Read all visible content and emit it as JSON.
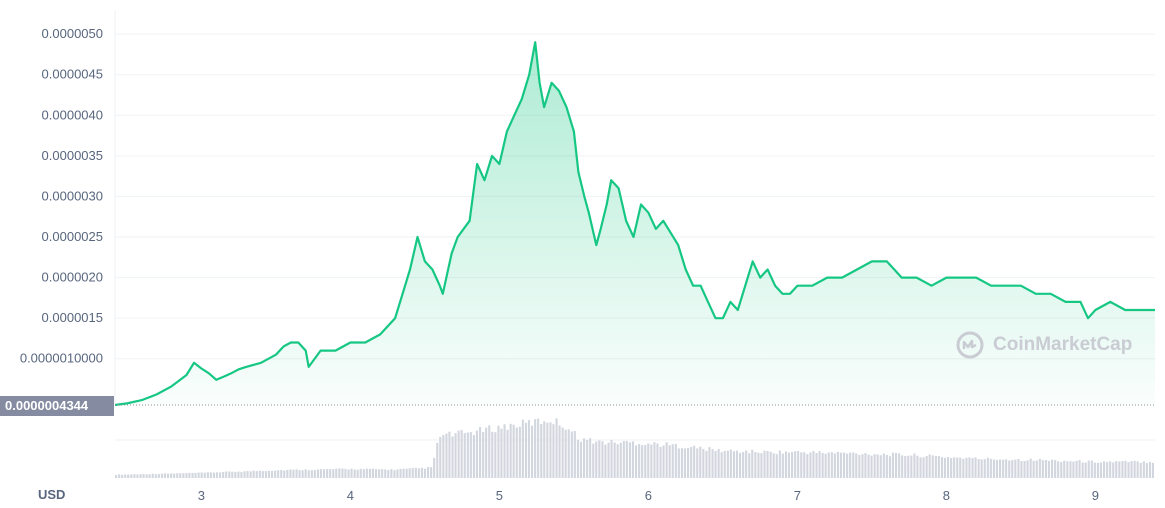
{
  "currency_label": "USD",
  "baseline_badge": "0.0000004344",
  "watermark": "CoinMarketCap",
  "colors": {
    "line": "#16c784",
    "fill_top": "#16c784",
    "volume": "#d2d6de",
    "badge": "#858ca2"
  },
  "chart_data": {
    "type": "area",
    "x_ticks": [
      "3",
      "4",
      "5",
      "6",
      "7",
      "8",
      "9"
    ],
    "y_ticks": [
      "0.0000050",
      "0.0000045",
      "0.0000040",
      "0.0000035",
      "0.0000030",
      "0.0000025",
      "0.0000020",
      "0.0000015",
      "0.0000010000"
    ],
    "ylim": [
      4.3e-07,
      5.1e-06
    ],
    "xlim": [
      2.42,
      9.4
    ],
    "grid": true,
    "series": [
      {
        "x": [
          2.42,
          2.5,
          2.6,
          2.7,
          2.8,
          2.9,
          2.95,
          3.0,
          3.05,
          3.1,
          3.15,
          3.2,
          3.25,
          3.3,
          3.4,
          3.5,
          3.55,
          3.6,
          3.65,
          3.7,
          3.72,
          3.8,
          3.9,
          4.0,
          4.1,
          4.2,
          4.3,
          4.35,
          4.4,
          4.45,
          4.5,
          4.55,
          4.6,
          4.62,
          4.68,
          4.72,
          4.8,
          4.85,
          4.9,
          4.95,
          5.0,
          5.05,
          5.1,
          5.15,
          5.2,
          5.24,
          5.27,
          5.3,
          5.35,
          5.4,
          5.45,
          5.5,
          5.53,
          5.57,
          5.6,
          5.65,
          5.68,
          5.72,
          5.75,
          5.8,
          5.85,
          5.9,
          5.95,
          6.0,
          6.05,
          6.1,
          6.2,
          6.25,
          6.3,
          6.35,
          6.4,
          6.45,
          6.5,
          6.55,
          6.6,
          6.7,
          6.75,
          6.8,
          6.85,
          6.9,
          6.95,
          7.0,
          7.1,
          7.2,
          7.3,
          7.4,
          7.5,
          7.6,
          7.65,
          7.7,
          7.8,
          7.9,
          8.0,
          8.1,
          8.2,
          8.3,
          8.4,
          8.5,
          8.6,
          8.7,
          8.8,
          8.9,
          8.95,
          9.0,
          9.1,
          9.2,
          9.3,
          9.4
        ],
        "values": [
          4.3e-07,
          4.5e-07,
          4.9e-07,
          5.6e-07,
          6.6e-07,
          8e-07,
          9.5e-07,
          8.8e-07,
          8.2e-07,
          7.4e-07,
          7.8e-07,
          8.2e-07,
          8.7e-07,
          9e-07,
          9.5e-07,
          1.05e-06,
          1.15e-06,
          1.2e-06,
          1.2e-06,
          1.1e-06,
          9e-07,
          1.1e-06,
          1.1e-06,
          1.2e-06,
          1.2e-06,
          1.3e-06,
          1.5e-06,
          1.8e-06,
          2.1e-06,
          2.5e-06,
          2.2e-06,
          2.1e-06,
          1.9e-06,
          1.8e-06,
          2.3e-06,
          2.5e-06,
          2.7e-06,
          3.4e-06,
          3.2e-06,
          3.5e-06,
          3.4e-06,
          3.8e-06,
          4e-06,
          4.2e-06,
          4.5e-06,
          4.9e-06,
          4.4e-06,
          4.1e-06,
          4.4e-06,
          4.3e-06,
          4.1e-06,
          3.8e-06,
          3.3e-06,
          3e-06,
          2.8e-06,
          2.4e-06,
          2.6e-06,
          2.9e-06,
          3.2e-06,
          3.1e-06,
          2.7e-06,
          2.5e-06,
          2.9e-06,
          2.8e-06,
          2.6e-06,
          2.7e-06,
          2.4e-06,
          2.1e-06,
          1.9e-06,
          1.9e-06,
          1.7e-06,
          1.5e-06,
          1.5e-06,
          1.7e-06,
          1.6e-06,
          2.2e-06,
          2e-06,
          2.1e-06,
          1.9e-06,
          1.8e-06,
          1.8e-06,
          1.9e-06,
          1.9e-06,
          2e-06,
          2e-06,
          2.1e-06,
          2.2e-06,
          2.2e-06,
          2.1e-06,
          2e-06,
          2e-06,
          1.9e-06,
          2e-06,
          2e-06,
          2e-06,
          1.9e-06,
          1.9e-06,
          1.9e-06,
          1.8e-06,
          1.8e-06,
          1.7e-06,
          1.7e-06,
          1.5e-06,
          1.6e-06,
          1.7e-06,
          1.6e-06,
          1.6e-06,
          1.6e-06
        ]
      },
      {
        "name": "volume",
        "x": [
          2.42,
          3.0,
          3.5,
          4.0,
          4.3,
          4.55,
          4.6,
          4.8,
          5.0,
          5.2,
          5.35,
          5.45,
          5.55,
          5.7,
          5.9,
          6.2,
          6.5,
          6.8,
          7.0,
          7.4,
          7.8,
          8.2,
          8.6,
          9.0,
          9.4
        ],
        "values": [
          0.05,
          0.08,
          0.12,
          0.14,
          0.13,
          0.16,
          0.65,
          0.7,
          0.78,
          0.85,
          0.9,
          0.8,
          0.6,
          0.55,
          0.55,
          0.5,
          0.42,
          0.4,
          0.4,
          0.38,
          0.35,
          0.3,
          0.28,
          0.25,
          0.25
        ]
      }
    ]
  }
}
